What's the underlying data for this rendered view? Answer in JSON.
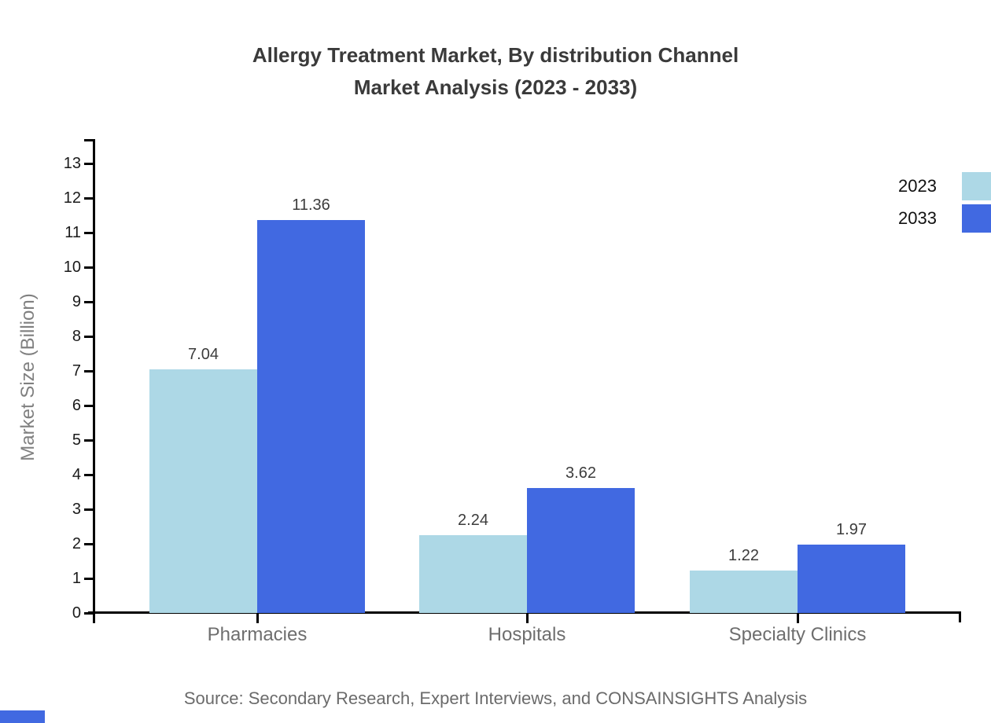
{
  "title": {
    "line1": "Allergy Treatment Market, By distribution Channel",
    "line2": "Market Analysis (2023 - 2033)"
  },
  "legend": {
    "items": [
      {
        "label": "2023",
        "color": "#ADD8E6"
      },
      {
        "label": "2033",
        "color": "#4169E1"
      }
    ]
  },
  "axes": {
    "y_label": "Market Size (Billion)"
  },
  "source": "Source: Secondary Research, Expert Interviews, and CONSAINSIGHTS Analysis",
  "colors": {
    "series_2023": "#ADD8E6",
    "series_2033": "#4169E1",
    "axis_line": "#000000",
    "title_text": "#3a3a3a",
    "tick_text": "#1a1a1a",
    "category_text": "#6e6e6e",
    "source_text": "#6b6b6b",
    "logo_fragment": "#4169E1"
  },
  "chart_data": {
    "type": "bar",
    "title": "Allergy Treatment Market, By distribution Channel Market Analysis (2023 - 2033)",
    "categories": [
      "Pharmacies",
      "Hospitals",
      "Specialty Clinics"
    ],
    "series": [
      {
        "name": "2023",
        "color": "#ADD8E6",
        "values": [
          7.04,
          2.24,
          1.22
        ],
        "labels": [
          "7.04",
          "2.24",
          "1.22"
        ]
      },
      {
        "name": "2033",
        "color": "#4169E1",
        "values": [
          11.36,
          3.62,
          1.97
        ],
        "labels": [
          "11.36",
          "3.62",
          "1.97"
        ]
      }
    ],
    "xlabel": "",
    "ylabel": "Market Size (Billion)",
    "ylim": [
      0,
      13
    ],
    "y_ticks": [
      0,
      1,
      2,
      3,
      4,
      5,
      6,
      7,
      8,
      9,
      10,
      11,
      12,
      13
    ],
    "grid": false,
    "value_labels": true,
    "legend_position": "top-right"
  }
}
